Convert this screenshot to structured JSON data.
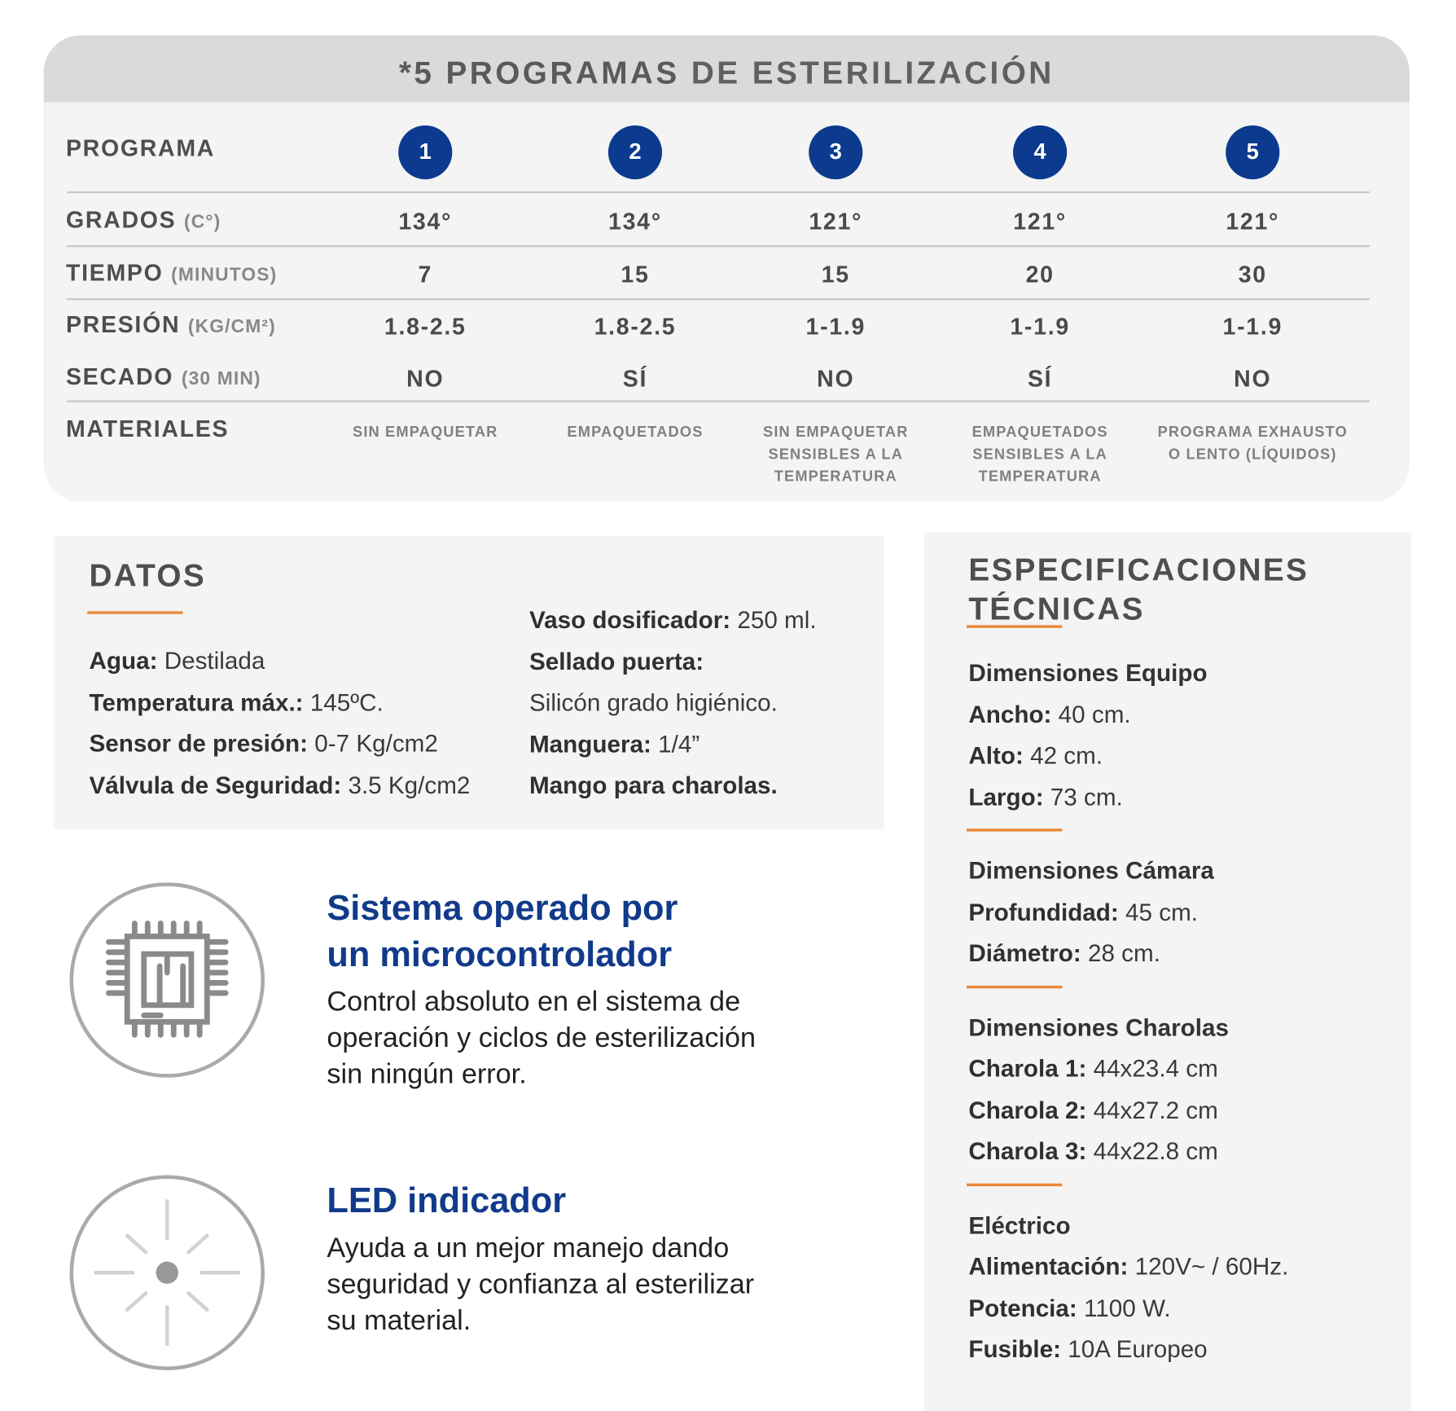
{
  "programs": {
    "title_bold": "*5 PROGRAMAS",
    "title_rest": "DE ESTERILIZACIÓN",
    "row_labels": [
      {
        "label": "PROGRAMA",
        "unit": ""
      },
      {
        "label": "GRADOS",
        "unit": "(C°)"
      },
      {
        "label": "TIEMPO",
        "unit": "(MINUTOS)"
      },
      {
        "label": "PRESIÓN",
        "unit": "(KG/CM²)"
      },
      {
        "label": "SECADO",
        "unit": "(30 MIN)"
      },
      {
        "label": "MATERIALES",
        "unit": ""
      }
    ],
    "columns": [
      {
        "num": "1",
        "grados": "134°",
        "tiempo": "7",
        "presion": "1.8-2.5",
        "secado": "NO",
        "materiales": [
          "SIN EMPAQUETAR"
        ]
      },
      {
        "num": "2",
        "grados": "134°",
        "tiempo": "15",
        "presion": "1.8-2.5",
        "secado": "SÍ",
        "materiales": [
          "EMPAQUETADOS"
        ]
      },
      {
        "num": "3",
        "grados": "121°",
        "tiempo": "15",
        "presion": "1-1.9",
        "secado": "NO",
        "materiales": [
          "SIN EMPAQUETAR",
          "SENSIBLES A LA",
          "TEMPERATURA"
        ]
      },
      {
        "num": "4",
        "grados": "121°",
        "tiempo": "20",
        "presion": "1-1.9",
        "secado": "SÍ",
        "materiales": [
          "EMPAQUETADOS",
          "SENSIBLES A LA",
          "TEMPERATURA"
        ]
      },
      {
        "num": "5",
        "grados": "121°",
        "tiempo": "30",
        "presion": "1-1.9",
        "secado": "NO",
        "materiales": [
          "PROGRAMA EXHAUSTO",
          "O LENTO (LÍQUIDOS)"
        ]
      }
    ]
  },
  "datos": {
    "title": "DATOS",
    "left": [
      {
        "k": "Agua:",
        "v": " Destilada"
      },
      {
        "k": "Temperatura máx.:",
        "v": " 145ºC."
      },
      {
        "k": "Sensor de presión:",
        "v": " 0-7 Kg/cm2"
      },
      {
        "k": "Válvula de Seguridad:",
        "v": " 3.5 Kg/cm2"
      }
    ],
    "right": [
      {
        "k": "Vaso dosificador:",
        "v": " 250 ml."
      },
      {
        "k": "Sellado puerta:",
        "v": ""
      },
      {
        "k": "",
        "v": "Silicón grado higiénico."
      },
      {
        "k": "Manguera:",
        "v": " 1/4”"
      },
      {
        "k": "Mango para charolas.",
        "v": ""
      }
    ]
  },
  "features": [
    {
      "icon": "microchip-icon",
      "title": [
        "Sistema operado por",
        "un microcontrolador"
      ],
      "text": [
        "Control absoluto en el sistema de",
        "operación y ciclos de esterilización",
        "sin ningún error."
      ]
    },
    {
      "icon": "led-icon",
      "title": [
        "LED indicador"
      ],
      "text": [
        "Ayuda a un mejor manejo dando",
        "seguridad y confianza al esterilizar",
        "su material."
      ]
    }
  ],
  "specs": {
    "title": [
      "ESPECIFICACIONES",
      "TÉCNICAS"
    ],
    "groups": [
      {
        "heading": "Dimensiones Equipo",
        "items": [
          {
            "k": "Ancho:",
            "v": " 40 cm."
          },
          {
            "k": "Alto:",
            "v": " 42 cm."
          },
          {
            "k": "Largo:",
            "v": " 73 cm."
          }
        ]
      },
      {
        "heading": "Dimensiones Cámara",
        "items": [
          {
            "k": "Profundidad:",
            "v": " 45 cm."
          },
          {
            "k": "Diámetro:",
            "v": " 28 cm."
          }
        ]
      },
      {
        "heading": "Dimensiones Charolas",
        "items": [
          {
            "k": "Charola 1:",
            "v": " 44x23.4 cm"
          },
          {
            "k": "Charola 2:",
            "v": " 44x27.2 cm"
          },
          {
            "k": "Charola 3:",
            "v": " 44x22.8 cm"
          }
        ]
      },
      {
        "heading": "Eléctrico",
        "items": [
          {
            "k": "Alimentación:",
            "v": " 120V~ / 60Hz."
          },
          {
            "k": "Potencia:",
            "v": " 1100 W."
          },
          {
            "k": "Fusible:",
            "v": " 10A Europeo"
          }
        ]
      }
    ]
  },
  "colors": {
    "accent_blue": "#0c3a8e",
    "orange": "#ea8a3a",
    "panel": "#f4f4f4"
  }
}
